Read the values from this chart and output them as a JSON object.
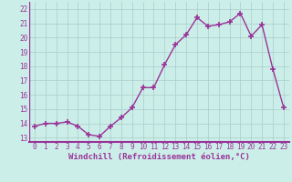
{
  "x": [
    0,
    1,
    2,
    3,
    4,
    5,
    6,
    7,
    8,
    9,
    10,
    11,
    12,
    13,
    14,
    15,
    16,
    17,
    18,
    19,
    20,
    21,
    22,
    23
  ],
  "y": [
    13.8,
    14.0,
    14.0,
    14.1,
    13.8,
    13.2,
    13.1,
    13.8,
    14.4,
    15.1,
    16.5,
    16.5,
    18.1,
    19.5,
    20.2,
    21.4,
    20.8,
    20.9,
    21.1,
    21.7,
    20.1,
    20.9,
    17.8,
    15.1
  ],
  "line_color": "#993399",
  "marker": "+",
  "marker_size": 4,
  "marker_linewidth": 1.2,
  "line_width": 1.0,
  "xlabel": "Windchill (Refroidissement éolien,°C)",
  "xlabel_fontsize": 6.5,
  "ylabel_ticks": [
    13,
    14,
    15,
    16,
    17,
    18,
    19,
    20,
    21,
    22
  ],
  "ylim": [
    12.7,
    22.5
  ],
  "xlim": [
    -0.5,
    23.5
  ],
  "xtick_labels": [
    "0",
    "1",
    "2",
    "3",
    "4",
    "5",
    "6",
    "7",
    "8",
    "9",
    "10",
    "11",
    "12",
    "13",
    "14",
    "15",
    "16",
    "17",
    "18",
    "19",
    "20",
    "21",
    "22",
    "23"
  ],
  "grid_color": "#aacccc",
  "bg_color": "#cceee8",
  "tick_fontsize": 5.5,
  "fig_bg_color": "#cceee8"
}
